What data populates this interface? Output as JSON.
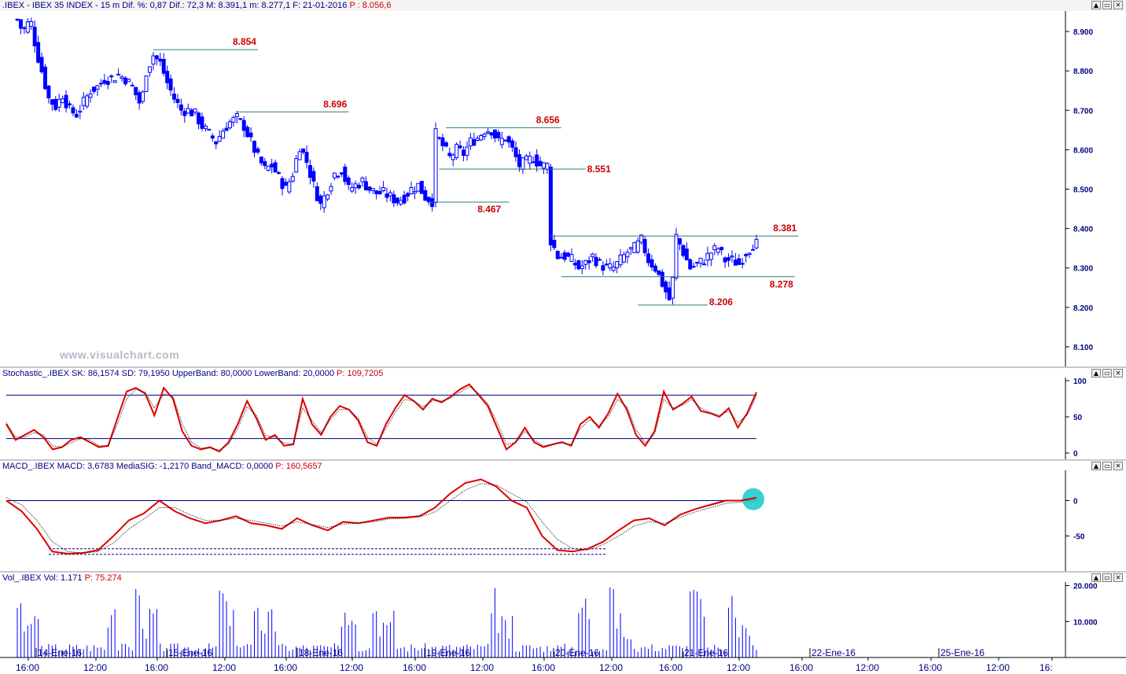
{
  "colors": {
    "candle": "#0000ff",
    "level_line": "#2e7d6e",
    "level_label": "#cc0000",
    "stoch_k": "#dd0000",
    "band_line": "#000080",
    "macd_line": "#dd0000",
    "volume": "#0000ff",
    "highlight_circle": "#22cccc"
  },
  "main_panel": {
    "header_black": ".IBEX - IBEX 35 INDEX - 15 m Dif. %: 0,87 Dif.: 72,3 M: 8.391,1 m: 8.277,1 F: 21-01-2016",
    "header_red": "P : 8.056,6",
    "watermark": "www.visualchart.com"
  },
  "stoch_panel": {
    "header_black": "Stochastic_.IBEX SK: 86,1574 SD: 79,1950 UpperBand: 80,0000 LowerBand: 20,0000",
    "header_red": "P: 109,7205"
  },
  "macd_panel": {
    "header_black": "MACD_.IBEX MACD: 3,6783 MediaSIG: -1,2170 Band_MACD: 0,0000",
    "header_red": "P: 160,5657"
  },
  "vol_panel": {
    "header_black": "Vol_.IBEX Vol: 1.171",
    "header_red": "P: 75.274"
  },
  "window_buttons": [
    "▲",
    "▭",
    "✕"
  ],
  "chart_data": [
    {
      "type": "candlestick",
      "title": ".IBEX - IBEX 35 INDEX - 15 m",
      "ylim": [
        8050,
        8960
      ],
      "y_ticks": [
        "8.900",
        "8.800",
        "8.700",
        "8.600",
        "8.500",
        "8.400",
        "8.300",
        "8.200",
        "8.100"
      ],
      "y_tick_values": [
        8900,
        8800,
        8700,
        8600,
        8500,
        8400,
        8300,
        8200,
        8100
      ],
      "close_path": [
        [
          0,
          8930
        ],
        [
          3,
          8900
        ],
        [
          6,
          8920
        ],
        [
          8,
          8920
        ],
        [
          11,
          8850
        ],
        [
          14,
          8800
        ],
        [
          18,
          8730
        ],
        [
          22,
          8710
        ],
        [
          26,
          8740
        ],
        [
          30,
          8700
        ],
        [
          34,
          8690
        ],
        [
          38,
          8720
        ],
        [
          42,
          8750
        ],
        [
          46,
          8760
        ],
        [
          50,
          8780
        ],
        [
          54,
          8780
        ],
        [
          58,
          8790
        ],
        [
          62,
          8780
        ],
        [
          66,
          8760
        ],
        [
          70,
          8720
        ],
        [
          72,
          8740
        ],
        [
          74,
          8800
        ],
        [
          78,
          8840
        ],
        [
          82,
          8820
        ],
        [
          86,
          8770
        ],
        [
          90,
          8730
        ],
        [
          94,
          8700
        ],
        [
          98,
          8700
        ],
        [
          102,
          8690
        ],
        [
          106,
          8660
        ],
        [
          110,
          8640
        ],
        [
          114,
          8620
        ],
        [
          118,
          8650
        ],
        [
          122,
          8670
        ],
        [
          126,
          8680
        ],
        [
          130,
          8660
        ],
        [
          134,
          8620
        ],
        [
          138,
          8580
        ],
        [
          142,
          8550
        ],
        [
          146,
          8560
        ],
        [
          150,
          8530
        ],
        [
          154,
          8500
        ],
        [
          158,
          8540
        ],
        [
          162,
          8610
        ],
        [
          166,
          8570
        ],
        [
          170,
          8510
        ],
        [
          174,
          8460
        ],
        [
          178,
          8500
        ],
        [
          182,
          8540
        ],
        [
          186,
          8550
        ],
        [
          190,
          8500
        ],
        [
          194,
          8510
        ],
        [
          198,
          8520
        ],
        [
          202,
          8500
        ],
        [
          206,
          8490
        ],
        [
          210,
          8490
        ],
        [
          214,
          8480
        ],
        [
          218,
          8470
        ],
        [
          222,
          8480
        ],
        [
          226,
          8500
        ],
        [
          230,
          8510
        ],
        [
          234,
          8480
        ],
        [
          238,
          8470
        ],
        [
          240,
          8640
        ],
        [
          244,
          8610
        ],
        [
          248,
          8580
        ],
        [
          252,
          8600
        ],
        [
          256,
          8590
        ],
        [
          260,
          8620
        ],
        [
          264,
          8630
        ],
        [
          268,
          8650
        ],
        [
          272,
          8650
        ],
        [
          276,
          8620
        ],
        [
          280,
          8630
        ],
        [
          284,
          8600
        ],
        [
          288,
          8560
        ],
        [
          292,
          8570
        ],
        [
          296,
          8580
        ],
        [
          300,
          8560
        ],
        [
          304,
          8560
        ],
        [
          306,
          8370
        ],
        [
          310,
          8330
        ],
        [
          314,
          8330
        ],
        [
          318,
          8320
        ],
        [
          322,
          8300
        ],
        [
          326,
          8310
        ],
        [
          330,
          8330
        ],
        [
          334,
          8310
        ],
        [
          338,
          8300
        ],
        [
          342,
          8300
        ],
        [
          346,
          8320
        ],
        [
          350,
          8340
        ],
        [
          354,
          8350
        ],
        [
          358,
          8370
        ],
        [
          362,
          8320
        ],
        [
          366,
          8300
        ],
        [
          370,
          8260
        ],
        [
          374,
          8220
        ],
        [
          376,
          8270
        ],
        [
          378,
          8380
        ],
        [
          382,
          8340
        ],
        [
          386,
          8300
        ],
        [
          390,
          8310
        ],
        [
          394,
          8320
        ],
        [
          398,
          8340
        ],
        [
          402,
          8350
        ],
        [
          406,
          8320
        ],
        [
          410,
          8320
        ],
        [
          414,
          8310
        ],
        [
          418,
          8340
        ],
        [
          422,
          8360
        ],
        [
          424,
          8361
        ]
      ],
      "levels": [
        {
          "label": "8.854",
          "value": 8854,
          "start": 78,
          "end": 138
        },
        {
          "label": "8.696",
          "value": 8696,
          "start": 126,
          "end": 190
        },
        {
          "label": "8.656",
          "value": 8656,
          "start": 246,
          "end": 312
        },
        {
          "label": "8.551",
          "value": 8551,
          "start": 242,
          "end": 326
        },
        {
          "label": "8.467",
          "value": 8467,
          "start": 236,
          "end": 282
        },
        {
          "label": "8.381",
          "value": 8381,
          "start": 306,
          "end": 448
        },
        {
          "label": "8.278",
          "value": 8278,
          "start": 312,
          "end": 446
        },
        {
          "label": "8.206",
          "value": 8206,
          "start": 356,
          "end": 396
        }
      ]
    },
    {
      "type": "line",
      "title": "Stochastic_.IBEX",
      "ylim": [
        0,
        100
      ],
      "y_ticks": [
        "100",
        "50",
        "0"
      ],
      "y_tick_values": [
        100,
        50,
        0
      ],
      "bands": [
        80,
        20
      ],
      "series": [
        {
          "name": "SK",
          "values": [
            40,
            18,
            25,
            32,
            22,
            5,
            8,
            18,
            22,
            15,
            8,
            10,
            48,
            85,
            90,
            82,
            52,
            90,
            75,
            30,
            10,
            5,
            8,
            2,
            15,
            40,
            72,
            48,
            18,
            25,
            10,
            12,
            75,
            40,
            25,
            50,
            65,
            60,
            45,
            15,
            10,
            40,
            62,
            80,
            72,
            60,
            75,
            70,
            78,
            88,
            95,
            80,
            65,
            35,
            5,
            15,
            35,
            15,
            8,
            12,
            15,
            10,
            40,
            50,
            35,
            55,
            82,
            60,
            25,
            10,
            30,
            85,
            60,
            68,
            78,
            58,
            55,
            50,
            62,
            35,
            55,
            84
          ]
        },
        {
          "name": "SD",
          "values": [
            42,
            22,
            22,
            28,
            25,
            10,
            8,
            14,
            20,
            18,
            10,
            10,
            40,
            75,
            88,
            84,
            62,
            82,
            78,
            40,
            15,
            7,
            7,
            4,
            12,
            34,
            64,
            52,
            24,
            22,
            14,
            12,
            62,
            45,
            28,
            46,
            60,
            60,
            48,
            22,
            12,
            34,
            56,
            74,
            72,
            64,
            72,
            72,
            76,
            84,
            92,
            82,
            68,
            42,
            12,
            14,
            30,
            18,
            10,
            12,
            14,
            12,
            34,
            46,
            38,
            50,
            74,
            64,
            32,
            14,
            26,
            74,
            62,
            66,
            74,
            62,
            56,
            52,
            58,
            42,
            52,
            79
          ]
        }
      ]
    },
    {
      "type": "line",
      "title": "MACD_.IBEX",
      "ylim": [
        -95,
        45
      ],
      "y_ticks": [
        "0",
        "-50"
      ],
      "y_tick_values": [
        0,
        -50
      ],
      "band": 0,
      "series": [
        {
          "name": "MACD",
          "values": [
            0,
            -15,
            -40,
            -72,
            -75,
            -74,
            -70,
            -50,
            -28,
            -18,
            0,
            -15,
            -25,
            -32,
            -28,
            -22,
            -32,
            -35,
            -40,
            -25,
            -35,
            -42,
            -30,
            -32,
            -28,
            -24,
            -24,
            -22,
            -10,
            10,
            25,
            30,
            20,
            0,
            -10,
            -50,
            -70,
            -72,
            -68,
            -58,
            -42,
            -28,
            -25,
            -35,
            -20,
            -12,
            -6,
            0,
            0,
            4
          ]
        },
        {
          "name": "MediaSIG",
          "values": [
            4,
            -6,
            -28,
            -58,
            -72,
            -74,
            -72,
            -60,
            -40,
            -26,
            -10,
            -10,
            -20,
            -28,
            -28,
            -25,
            -28,
            -32,
            -36,
            -30,
            -34,
            -38,
            -33,
            -32,
            -30,
            -26,
            -25,
            -23,
            -16,
            0,
            15,
            24,
            22,
            10,
            -2,
            -30,
            -55,
            -68,
            -70,
            -62,
            -50,
            -36,
            -30,
            -32,
            -24,
            -16,
            -10,
            -4,
            -2,
            -1
          ]
        }
      ]
    },
    {
      "type": "bar",
      "title": "Vol_.IBEX",
      "ylim": [
        0,
        21000
      ],
      "y_ticks": [
        "20.000",
        "10.000"
      ],
      "y_tick_values": [
        20000,
        10000
      ],
      "x_date_labels": [
        "14-Ene-16",
        "15-Ene-16",
        "18-Ene-16",
        "19-Ene-16",
        "20-Ene-16",
        "21-Ene-16",
        "22-Ene-16",
        "25-Ene-16"
      ]
    }
  ],
  "time_axis": {
    "ticks": [
      "16:00",
      "12:00",
      "16:00",
      "12:00",
      "16:00",
      "12:00",
      "16:00",
      "12:00",
      "16:00",
      "12:00",
      "16:00",
      "12:00",
      "16:00",
      "12:00",
      "16:00",
      "12:00",
      "16:"
    ]
  }
}
